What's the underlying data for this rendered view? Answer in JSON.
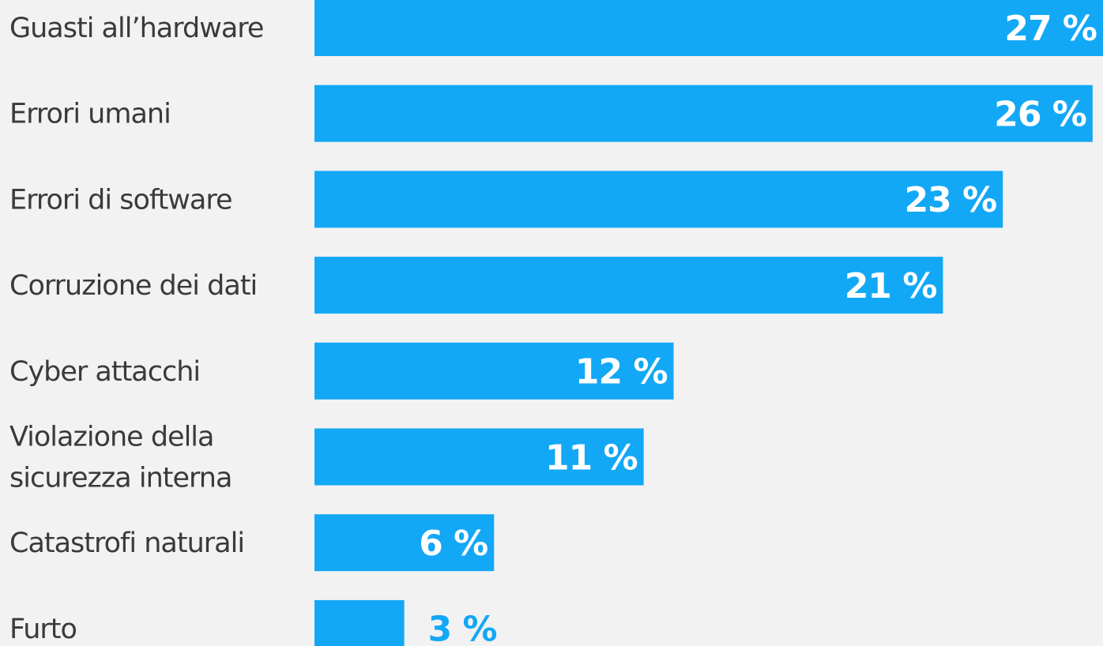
{
  "chart_data": {
    "type": "bar",
    "orientation": "horizontal",
    "categories": [
      "Guasti all’hardware",
      "Errori umani",
      "Errori di software",
      "Corruzione dei dati",
      "Cyber attacchi",
      "Violazione della sicurezza interna",
      "Catastrofi naturali",
      "Furto"
    ],
    "category_lines": [
      [
        "Guasti all’hardware"
      ],
      [
        "Errori umani"
      ],
      [
        "Errori di software"
      ],
      [
        "Corruzione dei dati"
      ],
      [
        "Cyber attacchi"
      ],
      [
        "Violazione della",
        "sicurezza interna"
      ],
      [
        "Catastrofi naturali"
      ],
      [
        "Furto"
      ]
    ],
    "values": [
      27,
      26,
      23,
      21,
      12,
      11,
      6,
      3
    ],
    "value_labels": [
      "27 %",
      "26 %",
      "23 %",
      "21 %",
      "12 %",
      "11 %",
      "6 %",
      "3 %"
    ],
    "unit": "%",
    "xlim": [
      0,
      26.4
    ],
    "grid": false,
    "legend": false,
    "colors": {
      "bar": "#13a8f5",
      "label_inside": "#ffffff",
      "label_outside": "#13a8f5",
      "category_text": "#3a3a3a",
      "background": "#f2f2f2"
    }
  }
}
